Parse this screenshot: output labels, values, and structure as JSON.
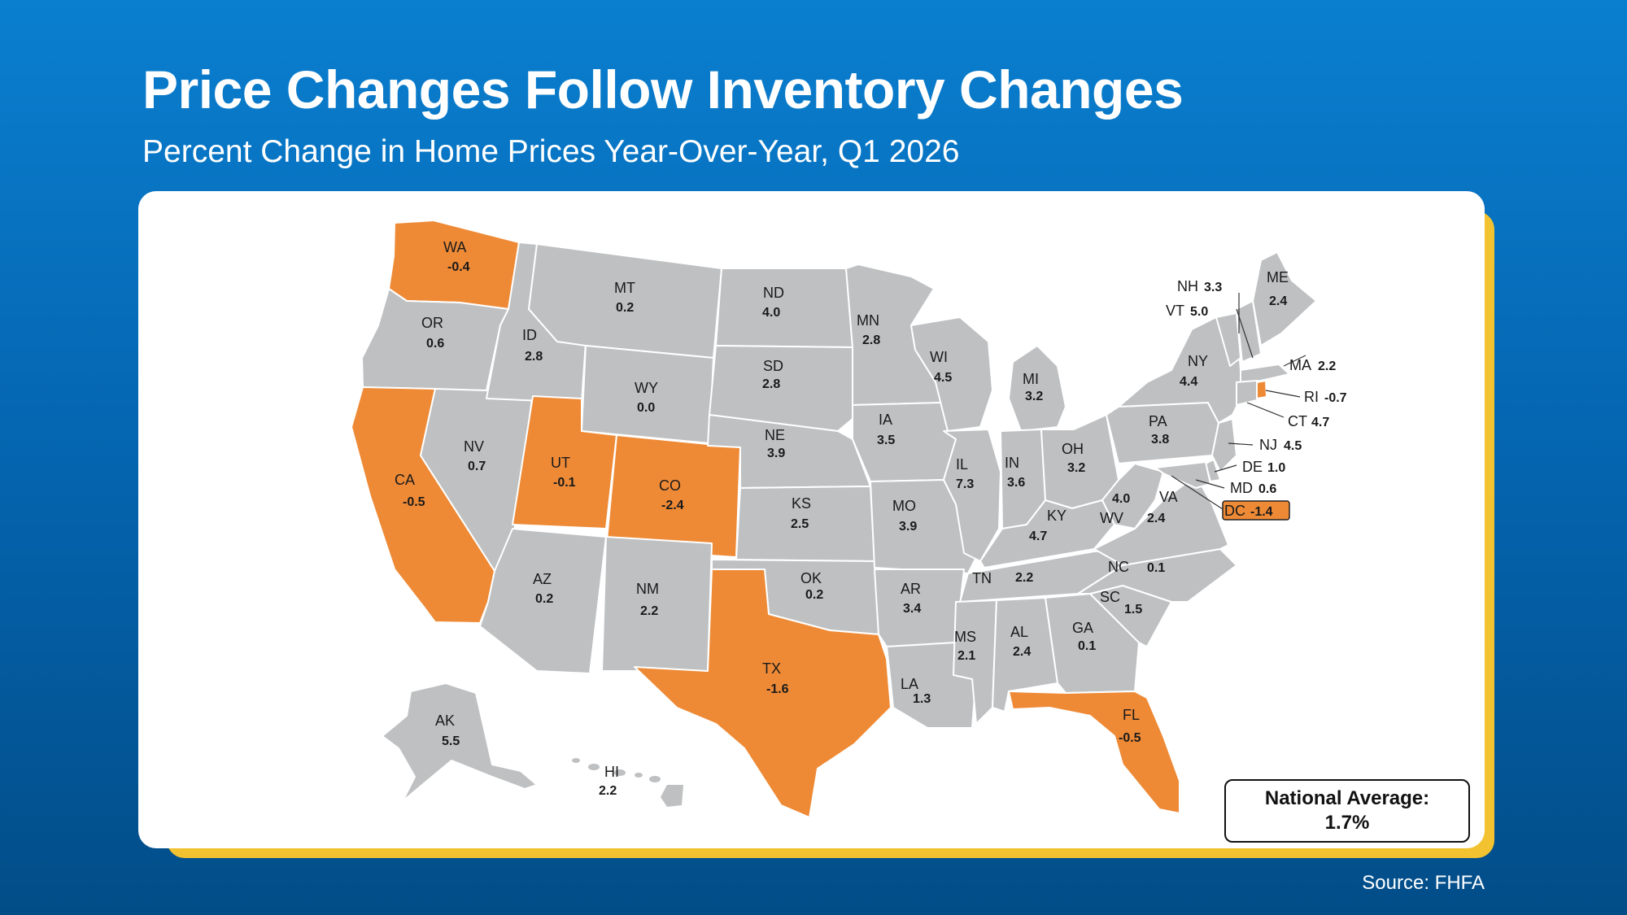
{
  "title": "Price Changes Follow Inventory Changes",
  "subtitle": "Percent Change in Home Prices Year-Over-Year, Q1 2026",
  "source": "Source: FHFA",
  "national_average": {
    "label": "National Average:",
    "value": "1.7%"
  },
  "colors": {
    "decline": "#ee8a36",
    "growth": "#bec0c2",
    "background": "#0567b3",
    "card_shadow": "#f2c230"
  },
  "states": {
    "WA": {
      "name": "WA",
      "value": "-0.4"
    },
    "OR": {
      "name": "OR",
      "value": "0.6"
    },
    "CA": {
      "name": "CA",
      "value": "-0.5"
    },
    "NV": {
      "name": "NV",
      "value": "0.7"
    },
    "ID": {
      "name": "ID",
      "value": "2.8"
    },
    "MT": {
      "name": "MT",
      "value": "0.2"
    },
    "WY": {
      "name": "WY",
      "value": "0.0"
    },
    "UT": {
      "name": "UT",
      "value": "-0.1"
    },
    "CO": {
      "name": "CO",
      "value": "-2.4"
    },
    "AZ": {
      "name": "AZ",
      "value": "0.2"
    },
    "NM": {
      "name": "NM",
      "value": "2.2"
    },
    "ND": {
      "name": "ND",
      "value": "4.0"
    },
    "SD": {
      "name": "SD",
      "value": "2.8"
    },
    "NE": {
      "name": "NE",
      "value": "3.9"
    },
    "KS": {
      "name": "KS",
      "value": "2.5"
    },
    "OK": {
      "name": "OK",
      "value": "0.2"
    },
    "TX": {
      "name": "TX",
      "value": "-1.6"
    },
    "MN": {
      "name": "MN",
      "value": "2.8"
    },
    "IA": {
      "name": "IA",
      "value": "3.5"
    },
    "MO": {
      "name": "MO",
      "value": "3.9"
    },
    "AR": {
      "name": "AR",
      "value": "3.4"
    },
    "LA": {
      "name": "LA",
      "value": "1.3"
    },
    "WI": {
      "name": "WI",
      "value": "4.5"
    },
    "IL": {
      "name": "IL",
      "value": "7.3"
    },
    "MI": {
      "name": "MI",
      "value": "3.2"
    },
    "IN": {
      "name": "IN",
      "value": "3.6"
    },
    "OH": {
      "name": "OH",
      "value": "3.2"
    },
    "KY": {
      "name": "KY",
      "value": "4.7"
    },
    "TN": {
      "name": "TN",
      "value": "2.2"
    },
    "MS": {
      "name": "MS",
      "value": "2.1"
    },
    "AL": {
      "name": "AL",
      "value": "2.4"
    },
    "GA": {
      "name": "GA",
      "value": "0.1"
    },
    "FL": {
      "name": "FL",
      "value": "-0.5"
    },
    "SC": {
      "name": "SC",
      "value": "1.5"
    },
    "NC": {
      "name": "NC",
      "value": "0.1"
    },
    "VA": {
      "name": "VA",
      "value": "2.4"
    },
    "WV": {
      "name": "WV",
      "value": "4.0"
    },
    "PA": {
      "name": "PA",
      "value": "3.8"
    },
    "NY": {
      "name": "NY",
      "value": "4.4"
    },
    "ME": {
      "name": "ME",
      "value": "2.4"
    },
    "NH": {
      "name": "NH",
      "value": "3.3"
    },
    "VT": {
      "name": "VT",
      "value": "5.0"
    },
    "MA": {
      "name": "MA",
      "value": "2.2"
    },
    "RI": {
      "name": "RI",
      "value": "-0.7"
    },
    "CT": {
      "name": "CT",
      "value": "4.7"
    },
    "NJ": {
      "name": "NJ",
      "value": "4.5"
    },
    "DE": {
      "name": "DE",
      "value": "1.0"
    },
    "MD": {
      "name": "MD",
      "value": "0.6"
    },
    "DC": {
      "name": "DC",
      "value": "-1.4"
    },
    "AK": {
      "name": "AK",
      "value": "5.5"
    },
    "HI": {
      "name": "HI",
      "value": "2.2"
    }
  }
}
